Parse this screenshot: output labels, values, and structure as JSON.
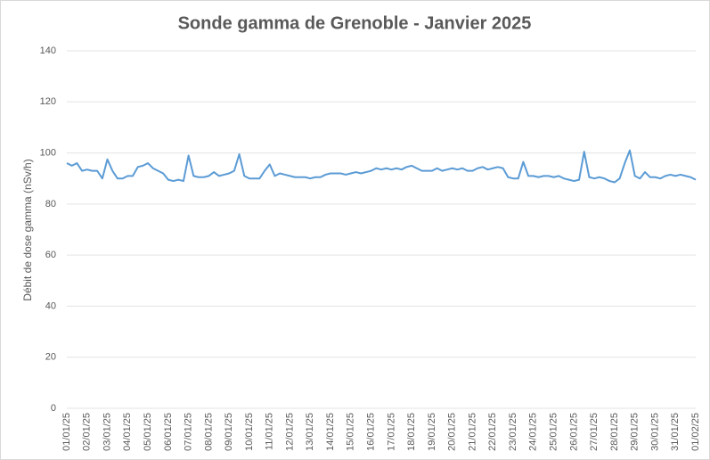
{
  "chart_data": {
    "type": "line",
    "title": "Sonde gamma de Grenoble - Janvier 2025",
    "y_label": "Débit de dose gamma (nSv/h)",
    "x": [
      "01/01/25",
      null,
      null,
      null,
      "02/01/25",
      null,
      null,
      null,
      "03/01/25",
      null,
      null,
      null,
      "04/01/25",
      null,
      null,
      null,
      "05/01/25",
      null,
      null,
      null,
      "06/01/25",
      null,
      null,
      null,
      "07/01/25",
      null,
      null,
      null,
      "08/01/25",
      null,
      null,
      null,
      "09/01/25",
      null,
      null,
      null,
      "10/01/25",
      null,
      null,
      null,
      "11/01/25",
      null,
      null,
      null,
      "12/01/25",
      null,
      null,
      null,
      "13/01/25",
      null,
      null,
      null,
      "14/01/25",
      null,
      null,
      null,
      "15/01/25",
      null,
      null,
      null,
      "16/01/25",
      null,
      null,
      null,
      "17/01/25",
      null,
      null,
      null,
      "18/01/25",
      null,
      null,
      null,
      "19/01/25",
      null,
      null,
      null,
      "20/01/25",
      null,
      null,
      null,
      "21/01/25",
      null,
      null,
      null,
      "22/01/25",
      null,
      null,
      null,
      "23/01/25",
      null,
      null,
      null,
      "24/01/25",
      null,
      null,
      null,
      "25/01/25",
      null,
      null,
      null,
      "26/01/25",
      null,
      null,
      null,
      "27/01/25",
      null,
      null,
      null,
      "28/01/25",
      null,
      null,
      null,
      "29/01/25",
      null,
      null,
      null,
      "30/01/25",
      null,
      null,
      null,
      "31/01/25",
      null,
      null,
      null,
      "01/02/25"
    ],
    "values": [
      96,
      95,
      96,
      93,
      93.5,
      93,
      93,
      90,
      97.5,
      93,
      90,
      90,
      91,
      91,
      94.5,
      95,
      96,
      94,
      93,
      92,
      89.5,
      89,
      89.5,
      89,
      99,
      91,
      90.5,
      90.5,
      91,
      92.5,
      91,
      91.5,
      92,
      93,
      99.5,
      91,
      90,
      90,
      90,
      93,
      95.5,
      91,
      92,
      91.5,
      91,
      90.5,
      90.5,
      90.5,
      90,
      90.5,
      90.5,
      91.5,
      92,
      92,
      92,
      91.5,
      92,
      92.5,
      92,
      92.5,
      93,
      94,
      93.5,
      94,
      93.5,
      94,
      93.5,
      94.5,
      95,
      94,
      93,
      93,
      93,
      94,
      93,
      93.5,
      94,
      93.5,
      94,
      93,
      93,
      94,
      94.5,
      93.5,
      94,
      94.5,
      94,
      90.5,
      90,
      90,
      96.5,
      91,
      91,
      90.5,
      91,
      91,
      90.5,
      91,
      90,
      89.5,
      89,
      89.5,
      100.5,
      90.5,
      90,
      90.5,
      90,
      89,
      88.5,
      90,
      96,
      101,
      91,
      90,
      92.5,
      90.5,
      90.5,
      90,
      91,
      91.5,
      91,
      91.5,
      91,
      90.5,
      89.5
    ],
    "color": "#5b9bd5",
    "ylim": [
      0,
      140
    ],
    "yticks": [
      0,
      20,
      40,
      60,
      80,
      100,
      120,
      140
    ],
    "grid": true
  }
}
